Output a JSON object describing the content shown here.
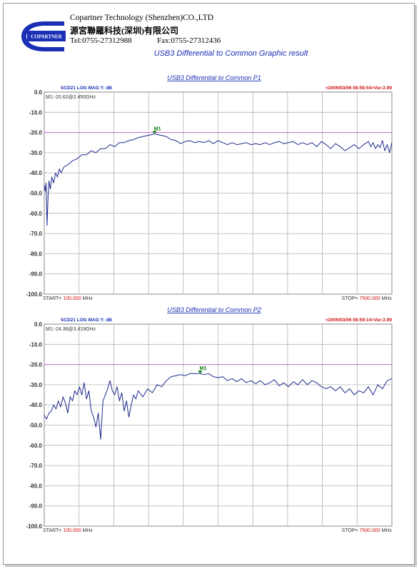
{
  "header": {
    "logo_text": "COPARTNER",
    "company_en": "Copartner Technology (Shenzhen)CO.,LTD",
    "company_cn": "源宮聯羅科技(深圳)有限公司",
    "tel": "Tel:0755-27312988",
    "fax": "Fax:0755-27312436"
  },
  "report_title": "USB3 Differential to Common Graphic result",
  "colors": {
    "trace": "#1c2a8c",
    "reference_line": "#c06bd6",
    "marker": "#0a7a0a",
    "title_blue": "#1a2fb5",
    "timestamp_red": "#cc1111",
    "grid": "#b4b4b4"
  },
  "chart_data": [
    {
      "type": "line",
      "title": "USB3 Differential to Common P1",
      "param_label": "SCD21  LOG MAG   Y: dB",
      "timestamp": "<2009/03/06 08:58:54>Ver:2.99",
      "marker_readout": "M1:-20.62@2.450GHz",
      "marker": {
        "label": "M1",
        "freq_mhz": 2450,
        "value_db": -20.62
      },
      "reference_line_db": -20,
      "y_ticks": [
        "0.0",
        "-10.0",
        "-20.0",
        "-30.0",
        "-40.0",
        "-50.0",
        "-60.0",
        "-70.0",
        "-80.0",
        "-90.0",
        "-100.0"
      ],
      "ylim": [
        -100,
        0
      ],
      "xlim": [
        100,
        7500
      ],
      "x_unit": "MHz",
      "y_unit": "dB",
      "start_prefix": "START= ",
      "start_value": "100.000",
      "start_unit": " MHz",
      "stop_prefix": "STOP= ",
      "stop_value": "7500.000",
      "stop_unit": " MHz",
      "series": [
        {
          "x": [
            100,
            120,
            140,
            160,
            180,
            200,
            230,
            260,
            300,
            340,
            380,
            420,
            460,
            520,
            600,
            700,
            800,
            900,
            1000,
            1100,
            1200,
            1300,
            1400,
            1500,
            1600,
            1700,
            1800,
            1900,
            2000,
            2100,
            2200,
            2300,
            2400,
            2450,
            2500,
            2600,
            2700,
            2800,
            2900,
            3000,
            3100,
            3200,
            3300,
            3400,
            3500,
            3600,
            3700,
            3800,
            3900,
            4000,
            4100,
            4200,
            4300,
            4400,
            4500,
            4600,
            4700,
            4800,
            4900,
            5000,
            5100,
            5200,
            5300,
            5400,
            5500,
            5600,
            5700,
            5800,
            5900,
            6000,
            6100,
            6200,
            6300,
            6400,
            6500,
            6600,
            6700,
            6800,
            6900,
            7000,
            7050,
            7100,
            7150,
            7200,
            7250,
            7300,
            7350,
            7400,
            7450,
            7500
          ],
          "values": [
            -46,
            -49,
            -45,
            -66,
            -52,
            -44,
            -48,
            -42,
            -45,
            -40,
            -42,
            -38,
            -40,
            -37,
            -36,
            -34,
            -33,
            -31,
            -31,
            -29,
            -30,
            -28,
            -28,
            -26,
            -27,
            -25,
            -25,
            -24,
            -23.5,
            -22.5,
            -22,
            -21.5,
            -21,
            -20.6,
            -21,
            -21.5,
            -22,
            -23.5,
            -24,
            -25.5,
            -24.5,
            -24,
            -25,
            -24.5,
            -25,
            -24,
            -25.5,
            -24,
            -25,
            -26,
            -25,
            -26,
            -25.5,
            -25,
            -26,
            -25.5,
            -26,
            -25,
            -26,
            -25,
            -24.5,
            -25.5,
            -25,
            -24.5,
            -26,
            -25,
            -26,
            -25,
            -27,
            -24.5,
            -26,
            -28,
            -25.5,
            -27,
            -29,
            -27.5,
            -26,
            -28,
            -26,
            -24.5,
            -27,
            -25,
            -28,
            -26,
            -27.5,
            -24,
            -29,
            -26,
            -30,
            -25
          ]
        }
      ]
    },
    {
      "type": "line",
      "title": "USB3 Differential to Common P2",
      "param_label": "SCD21  LOG MAG   Y: dB",
      "timestamp": "<2009/03/06 08:59:14>Ver:2.99",
      "marker_readout": "M1:-24.38@3.419GHz",
      "marker": {
        "label": "M1",
        "freq_mhz": 3419,
        "value_db": -24.38
      },
      "reference_line_db": -20,
      "y_ticks": [
        "0.0",
        "-10.0",
        "-20.0",
        "-30.0",
        "-40.0",
        "-50.0",
        "-60.0",
        "-70.0",
        "-80.0",
        "-90.0",
        "-100.0"
      ],
      "ylim": [
        -100,
        0
      ],
      "xlim": [
        100,
        7500
      ],
      "x_unit": "MHz",
      "y_unit": "dB",
      "start_prefix": "START= ",
      "start_value": "100.000",
      "start_unit": " MHz",
      "stop_prefix": "STOP= ",
      "stop_value": "7500.000",
      "stop_unit": " MHz",
      "series": [
        {
          "x": [
            100,
            150,
            200,
            250,
            300,
            350,
            400,
            450,
            500,
            550,
            600,
            650,
            700,
            750,
            800,
            850,
            900,
            950,
            1000,
            1050,
            1100,
            1150,
            1200,
            1250,
            1300,
            1350,
            1400,
            1450,
            1500,
            1550,
            1600,
            1650,
            1700,
            1750,
            1800,
            1850,
            1900,
            1950,
            2000,
            2050,
            2100,
            2200,
            2300,
            2400,
            2500,
            2600,
            2700,
            2800,
            2900,
            3000,
            3100,
            3200,
            3300,
            3419,
            3500,
            3600,
            3700,
            3800,
            3900,
            4000,
            4100,
            4200,
            4300,
            4400,
            4500,
            4600,
            4700,
            4800,
            4900,
            5000,
            5100,
            5200,
            5300,
            5400,
            5500,
            5600,
            5700,
            5800,
            5900,
            6000,
            6100,
            6200,
            6300,
            6400,
            6500,
            6600,
            6700,
            6800,
            6900,
            7000,
            7100,
            7200,
            7300,
            7400,
            7500
          ],
          "values": [
            -45,
            -47,
            -44,
            -43,
            -40,
            -42,
            -38,
            -41,
            -36,
            -39,
            -44,
            -36,
            -38,
            -33,
            -35,
            -31,
            -35,
            -29,
            -37,
            -33,
            -43,
            -46,
            -51,
            -44,
            -57,
            -38,
            -35,
            -32,
            -28,
            -33,
            -35,
            -31,
            -38,
            -34,
            -43,
            -38,
            -46,
            -40,
            -35,
            -37,
            -33,
            -36,
            -32,
            -34,
            -30,
            -31,
            -28,
            -26,
            -25.5,
            -25,
            -25.5,
            -24.5,
            -24.5,
            -24.38,
            -25,
            -24.5,
            -26,
            -26.5,
            -26,
            -28,
            -27,
            -28.5,
            -27,
            -29,
            -28,
            -29.5,
            -28,
            -30,
            -29,
            -27.5,
            -30.5,
            -29,
            -31,
            -28.5,
            -30,
            -27.5,
            -30,
            -28,
            -29,
            -31,
            -32,
            -31,
            -33,
            -31,
            -34,
            -32,
            -35,
            -33,
            -34,
            -31,
            -35,
            -30,
            -32,
            -28,
            -27
          ]
        }
      ]
    }
  ]
}
